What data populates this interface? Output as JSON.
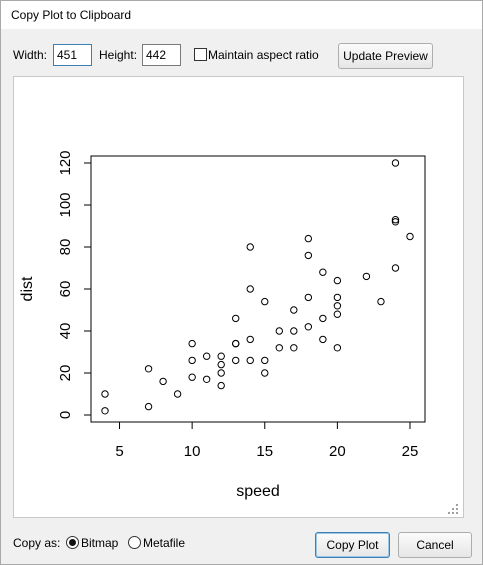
{
  "window": {
    "title": "Copy Plot to Clipboard"
  },
  "size": {
    "width_label": "Width:",
    "width_value": "451",
    "height_label": "Height:",
    "height_value": "442",
    "aspect_label": "Maintain aspect ratio",
    "aspect_checked": false,
    "update_label": "Update Preview"
  },
  "footer": {
    "copy_as_label": "Copy as:",
    "bitmap_label": "Bitmap",
    "metafile_label": "Metafile",
    "selected": "bitmap",
    "copy_label": "Copy Plot",
    "cancel_label": "Cancel"
  },
  "chart_data": {
    "type": "scatter",
    "xlabel": "speed",
    "ylabel": "dist",
    "xlim": [
      4,
      25
    ],
    "ylim": [
      0,
      120
    ],
    "x_ticks": [
      5,
      10,
      15,
      20,
      25
    ],
    "y_ticks": [
      0,
      20,
      40,
      60,
      80,
      100,
      120
    ],
    "grid": false,
    "marker": "open-circle",
    "points": [
      [
        4,
        2
      ],
      [
        4,
        10
      ],
      [
        7,
        4
      ],
      [
        7,
        22
      ],
      [
        8,
        16
      ],
      [
        9,
        10
      ],
      [
        10,
        18
      ],
      [
        10,
        26
      ],
      [
        10,
        34
      ],
      [
        11,
        17
      ],
      [
        11,
        28
      ],
      [
        12,
        14
      ],
      [
        12,
        20
      ],
      [
        12,
        24
      ],
      [
        12,
        28
      ],
      [
        13,
        26
      ],
      [
        13,
        34
      ],
      [
        13,
        34
      ],
      [
        13,
        46
      ],
      [
        14,
        26
      ],
      [
        14,
        36
      ],
      [
        14,
        60
      ],
      [
        14,
        80
      ],
      [
        15,
        20
      ],
      [
        15,
        26
      ],
      [
        15,
        54
      ],
      [
        16,
        32
      ],
      [
        16,
        40
      ],
      [
        17,
        32
      ],
      [
        17,
        40
      ],
      [
        17,
        50
      ],
      [
        18,
        42
      ],
      [
        18,
        56
      ],
      [
        18,
        76
      ],
      [
        18,
        84
      ],
      [
        19,
        36
      ],
      [
        19,
        46
      ],
      [
        19,
        68
      ],
      [
        20,
        32
      ],
      [
        20,
        48
      ],
      [
        20,
        52
      ],
      [
        20,
        56
      ],
      [
        20,
        64
      ],
      [
        22,
        66
      ],
      [
        23,
        54
      ],
      [
        24,
        70
      ],
      [
        24,
        92
      ],
      [
        24,
        93
      ],
      [
        24,
        120
      ],
      [
        25,
        85
      ]
    ]
  }
}
